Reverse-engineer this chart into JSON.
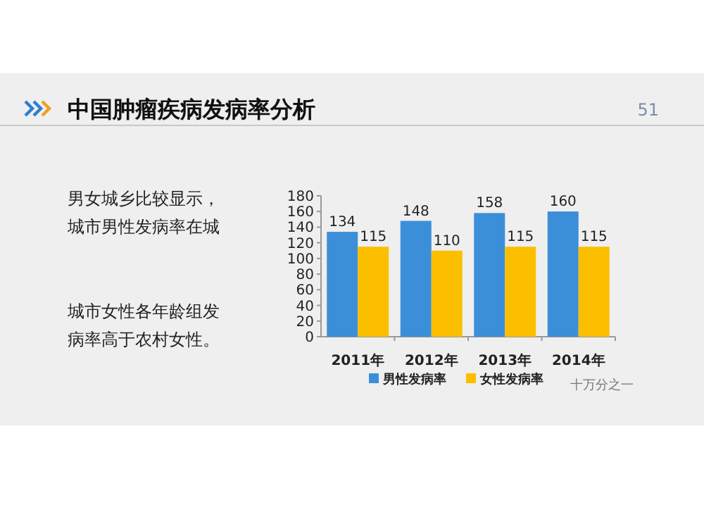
{
  "chart_data": {
    "type": "bar",
    "title": "中国肿瘤疾病发病率分析",
    "categories": [
      "2011年",
      "2012年",
      "2013年",
      "2014年"
    ],
    "series": [
      {
        "name": "男性发病率",
        "color": "#3b8fd8",
        "values": [
          134,
          148,
          158,
          160
        ]
      },
      {
        "name": "女性发病率",
        "color": "#fbbf00",
        "values": [
          115,
          110,
          115,
          115
        ]
      }
    ],
    "ylim": [
      0,
      180
    ],
    "yticks": [
      0,
      20,
      40,
      60,
      80,
      100,
      120,
      140,
      160,
      180
    ],
    "data_labels": true,
    "legend": "bottom",
    "grid": false,
    "annotations": [
      "51",
      "男女城乡比较显示，",
      "城市男性发病率在城",
      "城市女性各年龄组发",
      "病率高于农村女性。",
      "十万分之一"
    ]
  }
}
